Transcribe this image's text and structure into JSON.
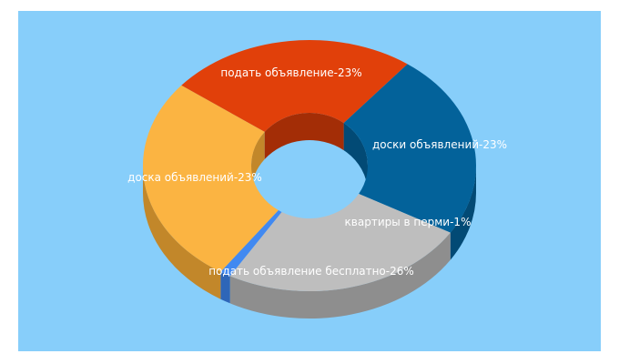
{
  "chart_data": {
    "type": "pie",
    "style": "3d-donut",
    "background": "#87cefa",
    "title": "",
    "slices": [
      {
        "label": "подать объявление-23%",
        "value": 23,
        "color": "#03629a",
        "side_color": "#024a75"
      },
      {
        "label": "доски объявлений-23%",
        "value": 23,
        "color": "#bebebe",
        "side_color": "#8e8e8e"
      },
      {
        "label": "квартиры в перми-1%",
        "value": 1,
        "color": "#4189f1",
        "side_color": "#2e66b8"
      },
      {
        "label": "подать объявление бесплатно-26%",
        "value": 26,
        "color": "#fbb442",
        "side_color": "#c2872a"
      },
      {
        "label": "доска объявлений-23%",
        "value": 23,
        "color": "#e1400a",
        "side_color": "#a32d06"
      }
    ]
  }
}
